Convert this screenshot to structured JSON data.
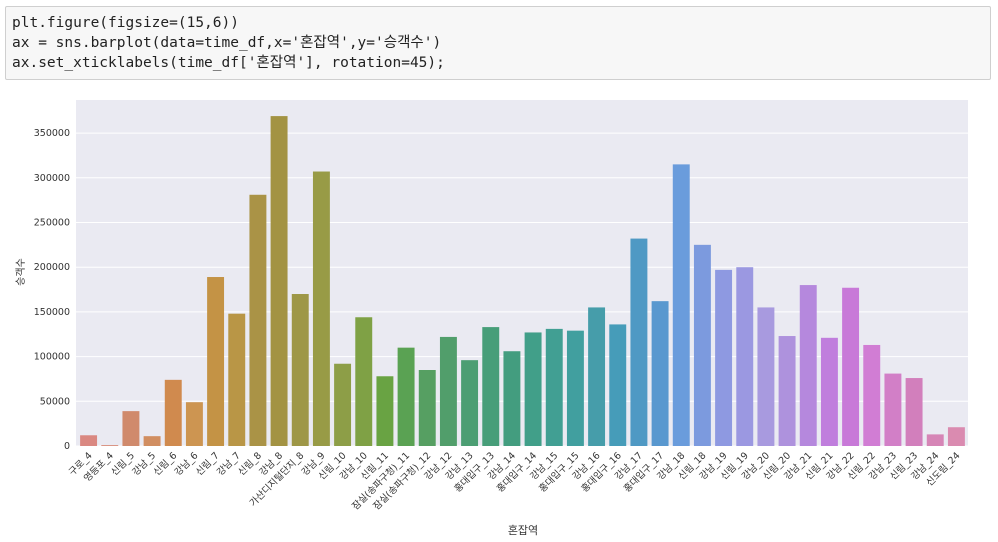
{
  "code": [
    "plt.figure(figsize=(15,6))",
    "ax = sns.barplot(data=time_df,x='혼잡역',y='승객수')",
    "ax.set_xticklabels(time_df['혼잡역'], rotation=45);"
  ],
  "chart_data": {
    "type": "bar",
    "xlabel": "혼잡역",
    "ylabel": "승객수",
    "categories": [
      "구로_4",
      "영등포_4",
      "신림_5",
      "강남_5",
      "신림_6",
      "강남_6",
      "신림_7",
      "강남_7",
      "신림_8",
      "강남_8",
      "가산디지털단지_8",
      "강남_9",
      "신림_10",
      "강남_10",
      "신림_11",
      "잠실(송파구청)_11",
      "잠실(송파구청)_12",
      "강남_12",
      "강남_13",
      "홍대입구_13",
      "강남_14",
      "홍대입구_14",
      "강남_15",
      "홍대입구_15",
      "강남_16",
      "홍대입구_16",
      "강남_17",
      "홍대입구_17",
      "강남_18",
      "신림_18",
      "강남_19",
      "신림_19",
      "강남_20",
      "신림_20",
      "강남_21",
      "신림_21",
      "강남_22",
      "신림_22",
      "강남_23",
      "신림_23",
      "강남_24",
      "신도림_24"
    ],
    "values": [
      12000,
      1000,
      39000,
      11000,
      74000,
      49000,
      189000,
      148000,
      281000,
      369000,
      170000,
      307000,
      92000,
      144000,
      78000,
      110000,
      85000,
      122000,
      96000,
      133000,
      106000,
      127000,
      131000,
      129000,
      155000,
      136000,
      232000,
      162000,
      315000,
      225000,
      197000,
      200000,
      155000,
      123000,
      180000,
      121000,
      177000,
      113000,
      81000,
      76000,
      13000,
      21000
    ],
    "colors": [
      "hsl(5,55%,68%)",
      "hsl(13,55%,66%)",
      "hsl(18,52%,62%)",
      "hsl(24,55%,60%)",
      "hsl(28,58%,56%)",
      "hsl(33,55%,56%)",
      "hsl(37,52%,52%)",
      "hsl(42,45%,50%)",
      "hsl(46,42%,47%)",
      "hsl(50,42%,45%)",
      "hsl(55,38%,45%)",
      "hsl(62,38%,44%)",
      "hsl(72,38%,45%)",
      "hsl(82,40%,45%)",
      "hsl(96,42%,45%)",
      "hsl(115,32%,48%)",
      "hsl(130,30%,48%)",
      "hsl(140,32%,47%)",
      "hsl(148,35%,46%)",
      "hsl(154,38%,45%)",
      "hsl(160,40%,44%)",
      "hsl(166,42%,44%)",
      "hsl(172,42%,44%)",
      "hsl(180,42%,44%)",
      "hsl(188,42%,47%)",
      "hsl(195,45%,50%)",
      "hsl(202,50%,54%)",
      "hsl(208,55%,58%)",
      "hsl(214,62%,64%)",
      "hsl(222,60%,68%)",
      "hsl(232,58%,72%)",
      "hsl(242,55%,74%)",
      "hsl(252,52%,74%)",
      "hsl(262,52%,72%)",
      "hsl(272,55%,70%)",
      "hsl(282,58%,68%)",
      "hsl(290,55%,66%)",
      "hsl(298,50%,66%)",
      "hsl(308,48%,66%)",
      "hsl(316,48%,66%)",
      "hsl(324,50%,68%)",
      "hsl(332,52%,70%)"
    ],
    "ylim": [
      0,
      387000
    ],
    "yticks": [
      0,
      50000,
      100000,
      150000,
      200000,
      250000,
      300000,
      350000
    ],
    "grid": true
  }
}
